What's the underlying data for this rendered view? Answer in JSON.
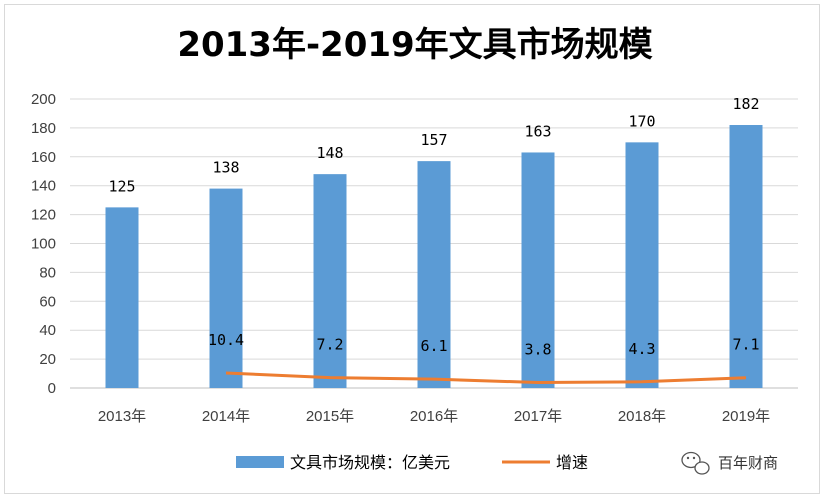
{
  "chart_data": {
    "type": "bar",
    "title": "2013年-2019年文具市场规模",
    "categories": [
      "2013年",
      "2014年",
      "2015年",
      "2016年",
      "2017年",
      "2018年",
      "2019年"
    ],
    "series": [
      {
        "name": "文具市场规模：亿美元",
        "kind": "bar",
        "values": [
          125,
          138,
          148,
          157,
          163,
          170,
          182
        ],
        "labels": [
          "125",
          "138",
          "148",
          "157",
          "163",
          "170",
          "182"
        ],
        "color": "#5b9bd5"
      },
      {
        "name": "增速",
        "kind": "line",
        "values": [
          null,
          10.4,
          7.2,
          6.1,
          3.8,
          4.3,
          7.1
        ],
        "labels": [
          null,
          "10.4",
          "7.2",
          "6.1",
          "3.8",
          "4.3",
          "7.1"
        ],
        "color": "#ed7d31"
      }
    ],
    "ylim": [
      0,
      200
    ],
    "yticks": [
      0,
      20,
      40,
      60,
      80,
      100,
      120,
      140,
      160,
      180,
      200
    ],
    "grid": true,
    "legend": "bottom"
  },
  "watermark": {
    "text": "百年财商",
    "icon": "wechat-icon"
  }
}
